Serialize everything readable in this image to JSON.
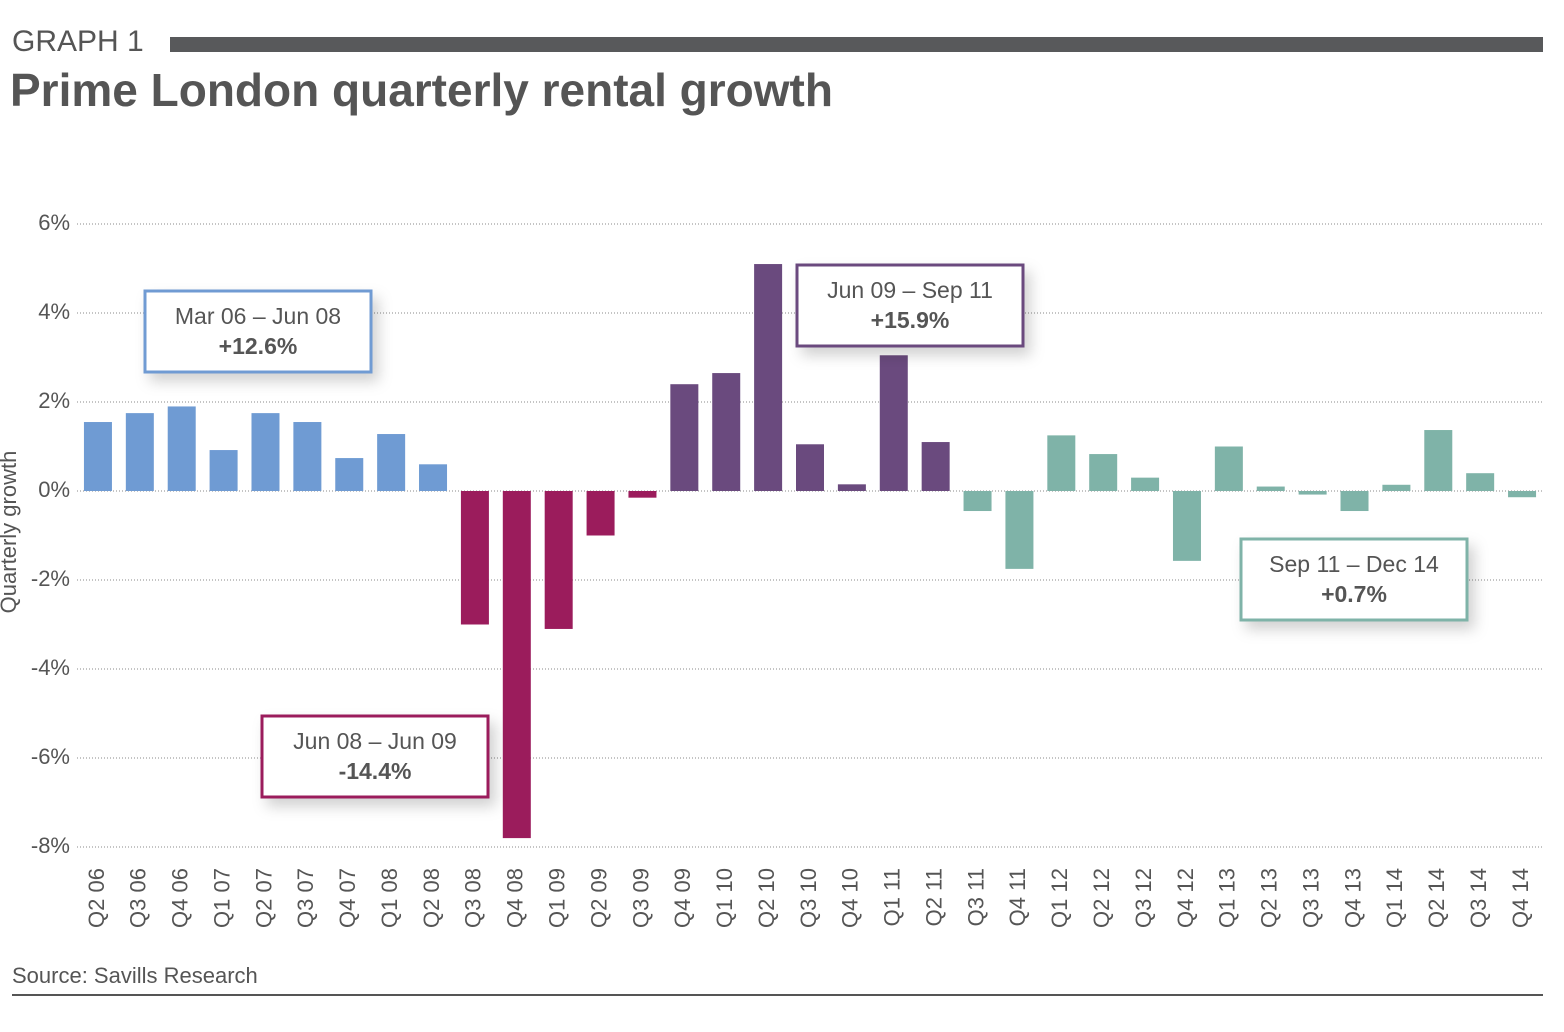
{
  "header": {
    "label": "GRAPH 1",
    "title": "Prime London quarterly rental growth"
  },
  "chart_data": {
    "type": "bar",
    "y_label": "Quarterly growth",
    "categories": [
      "Q2 06",
      "Q3 06",
      "Q4 06",
      "Q1 07",
      "Q2 07",
      "Q3 07",
      "Q4 07",
      "Q1 08",
      "Q2 08",
      "Q3 08",
      "Q4 08",
      "Q1 09",
      "Q2 09",
      "Q3 09",
      "Q4 09",
      "Q1 10",
      "Q2 10",
      "Q3 10",
      "Q4 10",
      "Q1 11",
      "Q2 11",
      "Q3 11",
      "Q4 11",
      "Q1 12",
      "Q2 12",
      "Q3 12",
      "Q4 12",
      "Q1 13",
      "Q2 13",
      "Q3 13",
      "Q4 13",
      "Q1 14",
      "Q2 14",
      "Q3 14",
      "Q4 14"
    ],
    "values": [
      1.55,
      1.75,
      1.9,
      0.92,
      1.75,
      1.55,
      0.74,
      1.28,
      0.6,
      -3.0,
      -7.8,
      -3.1,
      -1.0,
      -0.15,
      2.4,
      2.65,
      5.1,
      1.05,
      0.15,
      3.05,
      1.1,
      -0.45,
      -1.75,
      1.25,
      0.83,
      0.3,
      -1.57,
      1.0,
      0.1,
      -0.08,
      -0.45,
      0.14,
      1.37,
      0.4,
      -0.14
    ],
    "colors": [
      "#6f9bd3",
      "#6f9bd3",
      "#6f9bd3",
      "#6f9bd3",
      "#6f9bd3",
      "#6f9bd3",
      "#6f9bd3",
      "#6f9bd3",
      "#6f9bd3",
      "#9b1c5c",
      "#9b1c5c",
      "#9b1c5c",
      "#9b1c5c",
      "#9b1c5c",
      "#6a4a7e",
      "#6a4a7e",
      "#6a4a7e",
      "#6a4a7e",
      "#6a4a7e",
      "#6a4a7e",
      "#6a4a7e",
      "#7fb3a8",
      "#7fb3a8",
      "#7fb3a8",
      "#7fb3a8",
      "#7fb3a8",
      "#7fb3a8",
      "#7fb3a8",
      "#7fb3a8",
      "#7fb3a8",
      "#7fb3a8",
      "#7fb3a8",
      "#7fb3a8",
      "#7fb3a8",
      "#7fb3a8"
    ],
    "ylim": [
      -8,
      6
    ],
    "yticks": [
      {
        "value": -8,
        "label": "-8%"
      },
      {
        "value": -6,
        "label": "-6%"
      },
      {
        "value": -4,
        "label": "-4%"
      },
      {
        "value": -2,
        "label": "-2%"
      },
      {
        "value": 0,
        "label": "0%"
      },
      {
        "value": 2,
        "label": "2%"
      },
      {
        "value": 4,
        "label": "4%"
      },
      {
        "value": 6,
        "label": "6%"
      }
    ],
    "grid": true,
    "annotations": [
      {
        "text": "Mar 06 – Jun 08",
        "value": "+12.6%",
        "color": "#6f9bd3"
      },
      {
        "text": "Jun 09 – Sep 11",
        "value": "+15.9%",
        "color": "#6a4a7e"
      },
      {
        "text": "Jun 08 – Jun 09",
        "value": "-14.4%",
        "color": "#9b1c5c"
      },
      {
        "text": "Sep 11 – Dec 14",
        "value": "+0.7%",
        "color": "#7fb3a8"
      }
    ]
  },
  "footer": {
    "source": "Source: Savills Research"
  }
}
